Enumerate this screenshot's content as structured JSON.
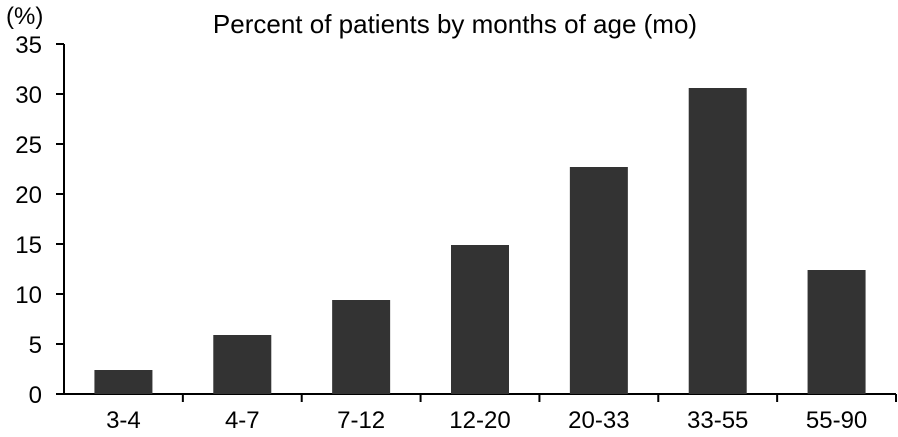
{
  "chart_data": {
    "type": "bar",
    "title": "Percent of patients by months of age (mo)",
    "y_unit_label": "(%)",
    "xlabel": "",
    "ylabel": "",
    "categories": [
      "3-4",
      "4-7",
      "7-12",
      "12-20",
      "20-33",
      "33-55",
      "55-90"
    ],
    "values": [
      2.4,
      5.9,
      9.4,
      14.9,
      22.7,
      30.6,
      12.4
    ],
    "ylim": [
      0,
      35
    ],
    "yticks": [
      "0",
      "5",
      "10",
      "15",
      "20",
      "25",
      "30",
      "35"
    ],
    "grid": false,
    "legend": "none",
    "bar_color": "#333333"
  }
}
